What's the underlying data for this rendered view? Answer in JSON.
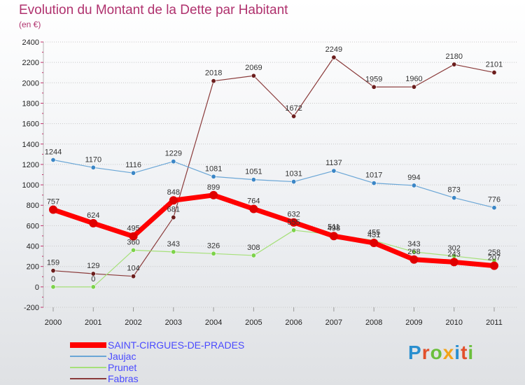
{
  "title": "Evolution du Montant de la Dette par Habitant",
  "subtitle": "(en €)",
  "logo": {
    "text": "Proxiti",
    "colors": [
      "#2a8fcf",
      "#e24f2b",
      "#6bbf3c",
      "#f2a31b",
      "#2a8fcf",
      "#e24f2b",
      "#6bbf3c"
    ]
  },
  "chart_data": {
    "type": "line",
    "x": [
      "2000",
      "2001",
      "2002",
      "2003",
      "2004",
      "2005",
      "2006",
      "2007",
      "2008",
      "2009",
      "2010",
      "2011"
    ],
    "ylim": [
      -200,
      2400
    ],
    "yticks": [
      "-200",
      "0",
      "200",
      "400",
      "600",
      "800",
      "1000",
      "1200",
      "1400",
      "1600",
      "1800",
      "2000",
      "2200",
      "2400"
    ],
    "grid": "horizontal dotted",
    "legend_position": "bottom-left",
    "series": [
      {
        "name": "SAINT-CIRGUES-DE-PRADES",
        "color": "#ff0000",
        "marker": "#e00000",
        "values": [
          757,
          624,
          495,
          848,
          899,
          764,
          632,
          498,
          431,
          268,
          243,
          207
        ],
        "labels": [
          "757",
          "624",
          "495",
          "848",
          "899",
          "764",
          "632",
          "498",
          "431",
          "268",
          "243",
          "207"
        ]
      },
      {
        "name": "Jaujac",
        "color": "#6aa6d6",
        "marker": "#3b86c6",
        "values": [
          1244,
          1170,
          1116,
          1229,
          1081,
          1051,
          1031,
          1137,
          1017,
          994,
          873,
          776
        ],
        "labels": [
          "1244",
          "1170",
          "1116",
          "1229",
          "1081",
          "1051",
          "1031",
          "1137",
          "1017",
          "994",
          "873",
          "776"
        ]
      },
      {
        "name": "Prunet",
        "color": "#a6e07a",
        "marker": "#7cd24a",
        "values": [
          0,
          0,
          360,
          343,
          326,
          308,
          555,
          511,
          455,
          343,
          302,
          258
        ],
        "labels": [
          "0",
          "0",
          "360",
          "343",
          "326",
          "308",
          "555",
          "511",
          "455",
          "343",
          "302",
          "258"
        ]
      },
      {
        "name": "Fabras",
        "color": "#8a3a3a",
        "marker": "#6b1d1d",
        "values": [
          159,
          129,
          104,
          681,
          2018,
          2069,
          1672,
          2249,
          1959,
          1960,
          2180,
          2101
        ],
        "labels": [
          "159",
          "129",
          "104",
          "681",
          "2018",
          "2069",
          "1672",
          "2249",
          "1959",
          "1960",
          "2180",
          "2101"
        ]
      }
    ]
  }
}
